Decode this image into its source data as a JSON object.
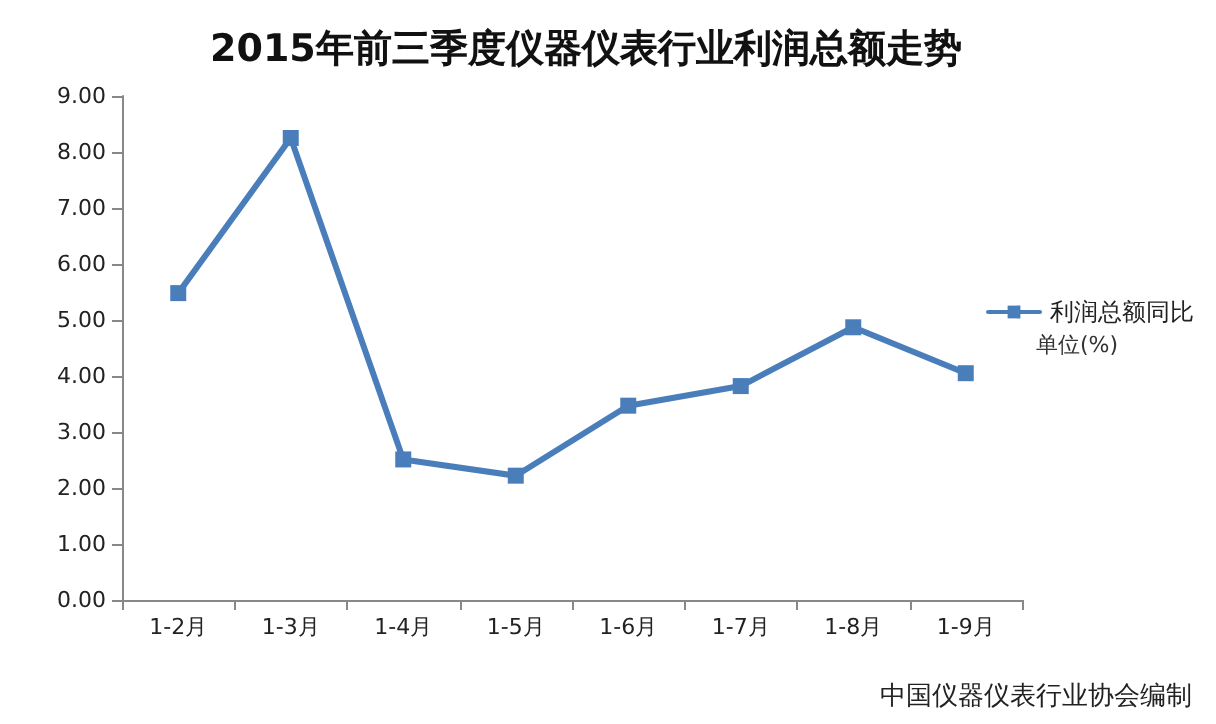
{
  "chart_data": {
    "type": "line",
    "title": "2015年前三季度仪器仪表行业利润总额走势",
    "categories": [
      "1-2月",
      "1-3月",
      "1-4月",
      "1-5月",
      "1-6月",
      "1-7月",
      "1-8月",
      "1-9月"
    ],
    "series": [
      {
        "name": "利润总额同比",
        "color": "#4a7ebb",
        "values": [
          5.48,
          8.25,
          2.51,
          2.22,
          3.47,
          3.82,
          4.87,
          4.05
        ]
      }
    ],
    "ylim": [
      0,
      9
    ],
    "yticks": [
      {
        "value": 0,
        "label": "0.00"
      },
      {
        "value": 1,
        "label": "1.00"
      },
      {
        "value": 2,
        "label": "2.00"
      },
      {
        "value": 3,
        "label": "3.00"
      },
      {
        "value": 4,
        "label": "4.00"
      },
      {
        "value": 5,
        "label": "5.00"
      },
      {
        "value": 6,
        "label": "6.00"
      },
      {
        "value": 7,
        "label": "7.00"
      },
      {
        "value": 8,
        "label": "8.00"
      },
      {
        "value": 9,
        "label": "9.00"
      }
    ],
    "grid": false,
    "legend": "right",
    "marker": "square",
    "line_style": "solid",
    "annotations": [
      "单位(%)",
      "中国仪器仪表行业协会编制"
    ]
  }
}
